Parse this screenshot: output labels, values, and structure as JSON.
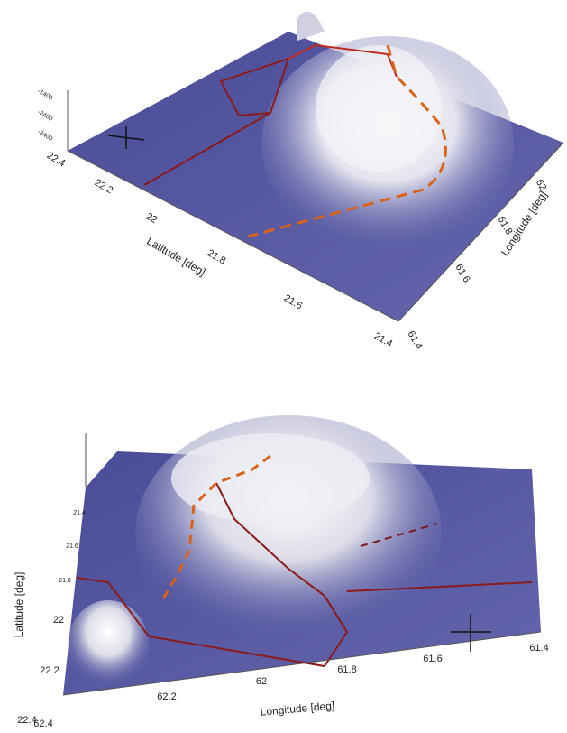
{
  "top_panel": {
    "latitude_label": "Latitude [deg]",
    "latitude_ticks": [
      "22.4",
      "22.2",
      "22",
      "21.8",
      "21.6",
      "21.4"
    ],
    "longitude_label": "Longitude [deg]",
    "longitude_ticks": [
      "61.4",
      "61.6",
      "61.8",
      "62"
    ],
    "depth_ticks": [
      "-1400",
      "-2400",
      "-3400"
    ]
  },
  "bottom_panel": {
    "latitude_label": "Latitude [deg]",
    "latitude_ticks": [
      "21.4",
      "21.6",
      "21.8",
      "22",
      "22.2",
      "22.4"
    ],
    "longitude_label": "Longitude [deg]",
    "longitude_ticks": [
      "62.4",
      "62.2",
      "62",
      "61.8",
      "61.6",
      "61.4"
    ]
  }
}
